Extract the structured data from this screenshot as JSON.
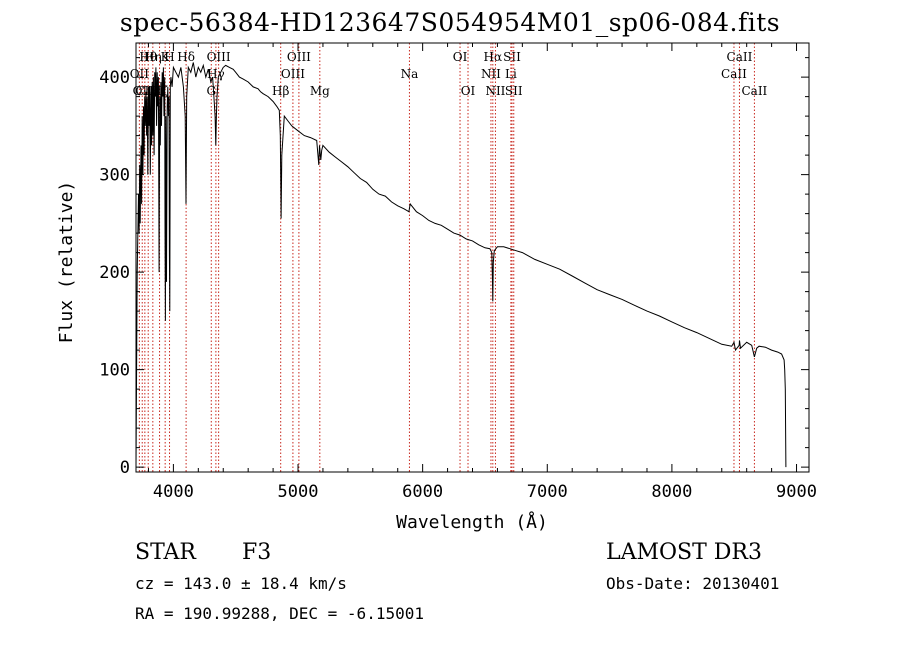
{
  "chart_data": {
    "type": "line",
    "title": "spec-56384-HD123647S054954M01_sp06-084.fits",
    "xlabel": "Wavelength (Å)",
    "ylabel": "Flux (relative)",
    "xlim": [
      3700,
      9100
    ],
    "ylim": [
      -5,
      435
    ],
    "xticks": [
      {
        "value": 4000,
        "label": "4000"
      },
      {
        "value": 5000,
        "label": "5000"
      },
      {
        "value": 6000,
        "label": "6000"
      },
      {
        "value": 7000,
        "label": "7000"
      },
      {
        "value": 8000,
        "label": "8000"
      },
      {
        "value": 9000,
        "label": "9000"
      }
    ],
    "yticks": [
      {
        "value": 0,
        "label": "0"
      },
      {
        "value": 100,
        "label": "100"
      },
      {
        "value": 200,
        "label": "200"
      },
      {
        "value": 300,
        "label": "300"
      },
      {
        "value": 400,
        "label": "400"
      }
    ],
    "series": [
      {
        "name": "flux",
        "x": [
          3700,
          3710,
          3720,
          3725,
          3730,
          3734,
          3740,
          3745,
          3750,
          3755,
          3760,
          3765,
          3770,
          3775,
          3780,
          3785,
          3790,
          3795,
          3800,
          3805,
          3810,
          3815,
          3820,
          3825,
          3830,
          3835,
          3840,
          3845,
          3850,
          3855,
          3860,
          3865,
          3870,
          3875,
          3880,
          3885,
          3890,
          3895,
          3900,
          3905,
          3910,
          3915,
          3920,
          3925,
          3930,
          3933,
          3936,
          3940,
          3945,
          3950,
          3955,
          3960,
          3965,
          3968,
          3971,
          3975,
          3980,
          3990,
          4000,
          4020,
          4040,
          4060,
          4080,
          4095,
          4101,
          4107,
          4120,
          4140,
          4160,
          4180,
          4200,
          4220,
          4240,
          4260,
          4280,
          4300,
          4315,
          4325,
          4335,
          4340,
          4345,
          4350,
          4360,
          4380,
          4400,
          4420,
          4450,
          4480,
          4500,
          4530,
          4560,
          4600,
          4640,
          4680,
          4700,
          4720,
          4760,
          4800,
          4830,
          4850,
          4858,
          4861,
          4864,
          4870,
          4890,
          4920,
          4950,
          5000,
          5050,
          5100,
          5150,
          5167,
          5172,
          5183,
          5190,
          5200,
          5250,
          5300,
          5350,
          5400,
          5450,
          5500,
          5550,
          5600,
          5650,
          5700,
          5750,
          5800,
          5850,
          5890,
          5900,
          5950,
          6000,
          6050,
          6100,
          6150,
          6200,
          6250,
          6300,
          6350,
          6400,
          6450,
          6500,
          6540,
          6555,
          6560,
          6563,
          6567,
          6575,
          6600,
          6650,
          6700,
          6750,
          6800,
          6900,
          7000,
          7100,
          7200,
          7300,
          7400,
          7500,
          7600,
          7700,
          7800,
          7900,
          8000,
          8100,
          8200,
          8300,
          8400,
          8480,
          8498,
          8510,
          8540,
          8542,
          8550,
          8600,
          8640,
          8662,
          8680,
          8700,
          8750,
          8800,
          8850,
          8880,
          8900,
          8905,
          8910,
          8915
        ],
        "values": [
          0,
          200,
          280,
          240,
          310,
          250,
          330,
          270,
          360,
          300,
          370,
          320,
          380,
          350,
          385,
          340,
          380,
          300,
          390,
          350,
          385,
          300,
          390,
          330,
          395,
          340,
          400,
          320,
          405,
          380,
          410,
          350,
          405,
          370,
          400,
          200,
          380,
          330,
          395,
          350,
          405,
          380,
          410,
          360,
          400,
          250,
          150,
          360,
          190,
          370,
          390,
          360,
          380,
          220,
          160,
          390,
          400,
          390,
          410,
          405,
          400,
          410,
          390,
          360,
          270,
          380,
          410,
          405,
          415,
          400,
          410,
          405,
          412,
          400,
          408,
          395,
          400,
          380,
          360,
          330,
          360,
          380,
          400,
          405,
          410,
          412,
          410,
          408,
          405,
          400,
          398,
          395,
          390,
          388,
          385,
          383,
          380,
          375,
          370,
          366,
          340,
          300,
          255,
          320,
          360,
          355,
          350,
          345,
          340,
          338,
          335,
          310,
          330,
          315,
          325,
          330,
          323,
          318,
          313,
          308,
          302,
          296,
          292,
          285,
          280,
          278,
          272,
          268,
          265,
          262,
          270,
          262,
          258,
          253,
          250,
          248,
          244,
          240,
          238,
          234,
          232,
          228,
          225,
          224,
          220,
          195,
          170,
          210,
          222,
          226,
          226,
          224,
          222,
          220,
          213,
          208,
          203,
          196,
          189,
          182,
          177,
          172,
          166,
          160,
          155,
          149,
          143,
          138,
          132,
          126,
          124,
          128,
          120,
          125,
          130,
          122,
          128,
          125,
          113,
          122,
          124,
          123,
          120,
          118,
          116,
          110,
          100,
          80,
          0
        ]
      }
    ],
    "line_markers": [
      {
        "wavelength": 3727,
        "label": "OII",
        "row": 2
      },
      {
        "wavelength": 3750,
        "label": "OII",
        "row": 3
      },
      {
        "wavelength": 3771,
        "label": "CII",
        "row": 3
      },
      {
        "wavelength": 3798,
        "label": "Hθ",
        "row": 1
      },
      {
        "wavelength": 3835,
        "label": "Hη",
        "row": 1
      },
      {
        "wavelength": 3889,
        "label": "Hζ",
        "row": 3
      },
      {
        "wavelength": 3934,
        "label": "K",
        "row": 1
      },
      {
        "wavelength": 3969,
        "label": "H",
        "row": 1
      },
      {
        "wavelength": 4102,
        "label": "Hδ",
        "row": 1
      },
      {
        "wavelength": 4304,
        "label": "G",
        "row": 3
      },
      {
        "wavelength": 4341,
        "label": "Hγ",
        "row": 2
      },
      {
        "wavelength": 4363,
        "label": "OIII",
        "row": 1
      },
      {
        "wavelength": 4861,
        "label": "Hβ",
        "row": 3
      },
      {
        "wavelength": 4959,
        "label": "OIII",
        "row": 2
      },
      {
        "wavelength": 5007,
        "label": "OIII",
        "row": 1
      },
      {
        "wavelength": 5175,
        "label": "Mg",
        "row": 3
      },
      {
        "wavelength": 5894,
        "label": "Na",
        "row": 2
      },
      {
        "wavelength": 6300,
        "label": "OI",
        "row": 1
      },
      {
        "wavelength": 6364,
        "label": "OI",
        "row": 3
      },
      {
        "wavelength": 6548,
        "label": "NII",
        "row": 2
      },
      {
        "wavelength": 6563,
        "label": "Hα",
        "row": 1
      },
      {
        "wavelength": 6584,
        "label": "NII",
        "row": 3
      },
      {
        "wavelength": 6708,
        "label": "Li",
        "row": 2
      },
      {
        "wavelength": 6717,
        "label": "SII",
        "row": 1
      },
      {
        "wavelength": 6731,
        "label": "SII",
        "row": 3
      },
      {
        "wavelength": 8498,
        "label": "CaII",
        "row": 2
      },
      {
        "wavelength": 8542,
        "label": "CaII",
        "row": 1
      },
      {
        "wavelength": 8662,
        "label": "CaII",
        "row": 3
      }
    ],
    "colors": {
      "spectrum": "#000000",
      "marker": "#c8281e",
      "axes": "#000000"
    }
  },
  "info": {
    "class": "STAR",
    "subclass": "F3",
    "survey": "LAMOST DR3",
    "cz": "cz = 143.0 ± 18.4 km/s",
    "obs_date": "Obs-Date: 20130401",
    "coords": "RA = 190.99288, DEC =  -6.15001"
  }
}
